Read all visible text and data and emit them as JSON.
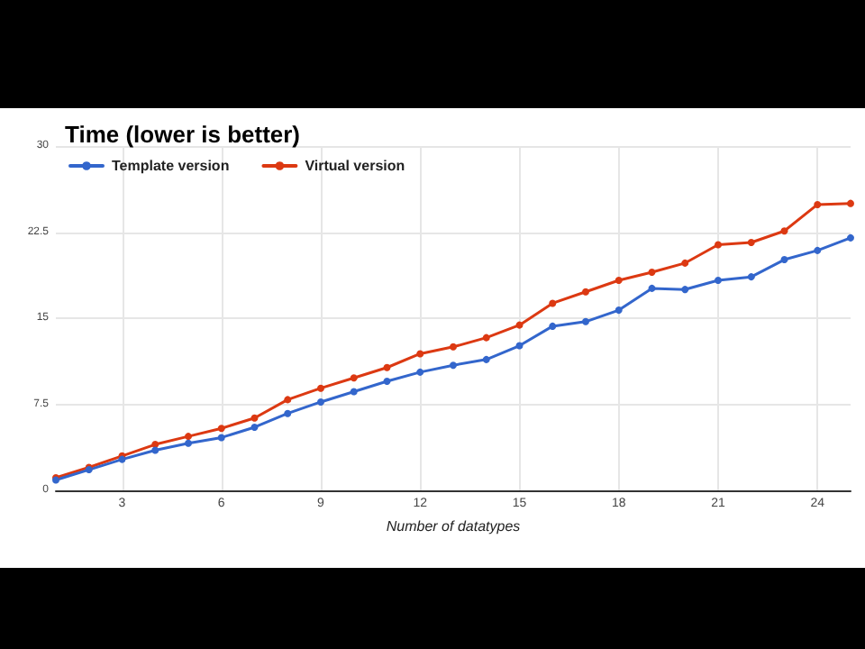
{
  "chart_data": {
    "type": "line",
    "title": "Time (lower is better)",
    "xlabel": "Number of datatypes",
    "x": [
      1,
      2,
      3,
      4,
      5,
      6,
      7,
      8,
      9,
      10,
      11,
      12,
      13,
      14,
      15,
      16,
      17,
      18,
      19,
      20,
      21,
      22,
      23,
      24,
      25
    ],
    "series": [
      {
        "name": "Template version",
        "color": "#3366cc",
        "values": [
          0.9,
          1.8,
          2.7,
          3.5,
          4.1,
          4.6,
          5.5,
          6.7,
          7.7,
          8.6,
          9.5,
          10.3,
          10.9,
          11.4,
          12.6,
          14.3,
          14.7,
          15.7,
          17.6,
          17.5,
          18.3,
          18.6,
          20.1,
          20.9,
          22.0
        ]
      },
      {
        "name": "Virtual version",
        "color": "#dc3912",
        "values": [
          1.1,
          2.0,
          3.0,
          4.0,
          4.7,
          5.4,
          6.3,
          7.9,
          8.9,
          9.8,
          10.7,
          11.9,
          12.5,
          13.3,
          14.4,
          16.3,
          17.3,
          18.3,
          19.0,
          19.8,
          21.4,
          21.6,
          22.6,
          24.9,
          25.0
        ]
      }
    ],
    "xlim": [
      1,
      25
    ],
    "xticks": [
      3,
      6,
      9,
      12,
      15,
      18,
      21,
      24
    ],
    "ylim": [
      0,
      30
    ],
    "yticks": [
      0,
      7.5,
      15,
      22.5,
      30
    ],
    "grid": true,
    "legend": "top left",
    "marker": "circle",
    "line_style": "solid"
  }
}
